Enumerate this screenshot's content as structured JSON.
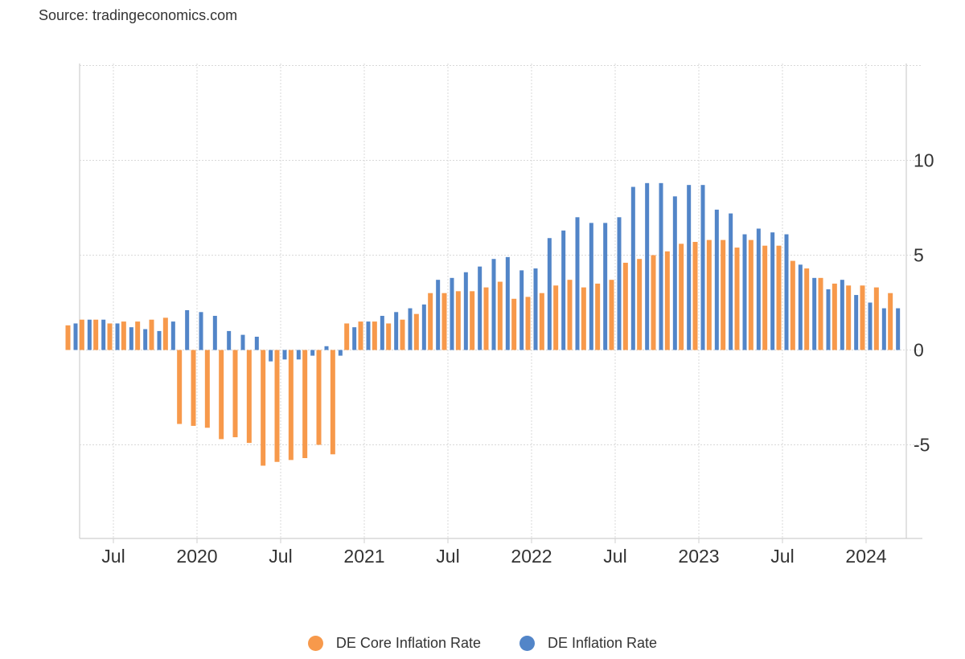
{
  "source": "Source: tradingeconomics.com",
  "chart_data": {
    "type": "bar",
    "x_ticks": [
      "Jul",
      "2020",
      "Jul",
      "2021",
      "Jul",
      "2022",
      "Jul",
      "2023",
      "Jul",
      "2024"
    ],
    "y_ticks": [
      10,
      5,
      0,
      -5
    ],
    "y_tick_labels": [
      "10",
      "5",
      "0",
      "-5"
    ],
    "ylim": [
      -10,
      15
    ],
    "grid": true,
    "legend_position": "bottom",
    "series": [
      {
        "name": "DE Core Inflation Rate",
        "color": "#f7994b",
        "values": [
          1.3,
          1.6,
          1.6,
          1.4,
          1.5,
          1.5,
          1.6,
          1.7,
          -3.9,
          -4.0,
          -4.1,
          -4.7,
          -4.6,
          -4.9,
          -6.1,
          -5.9,
          -5.8,
          -5.7,
          -5.0,
          -5.5,
          1.4,
          1.5,
          1.5,
          1.4,
          1.6,
          1.9,
          3.0,
          3.0,
          3.1,
          3.1,
          3.3,
          3.6,
          2.7,
          2.8,
          3.0,
          3.4,
          3.7,
          3.3,
          3.5,
          3.7,
          4.6,
          4.8,
          5.0,
          5.2,
          5.6,
          5.7,
          5.8,
          5.8,
          5.4,
          5.8,
          5.5,
          5.5,
          4.7,
          4.3,
          3.8,
          3.5,
          3.4,
          3.4,
          3.3,
          3.0
        ],
        "dates": [
          "2019-04",
          "2019-05",
          "2019-06",
          "2019-07",
          "2019-08",
          "2019-09",
          "2019-10",
          "2019-11",
          "2019-12",
          "2020-01",
          "2020-02",
          "2020-03",
          "2020-04",
          "2020-05",
          "2020-06",
          "2020-07",
          "2020-08",
          "2020-09",
          "2020-10",
          "2020-11",
          "2020-12",
          "2021-01",
          "2021-02",
          "2021-03",
          "2021-04",
          "2021-05",
          "2021-06",
          "2021-07",
          "2021-08",
          "2021-09",
          "2021-10",
          "2021-11",
          "2021-12",
          "2022-01",
          "2022-02",
          "2022-03",
          "2022-04",
          "2022-05",
          "2022-06",
          "2022-07",
          "2022-08",
          "2022-09",
          "2022-10",
          "2022-11",
          "2022-12",
          "2023-01",
          "2023-02",
          "2023-03",
          "2023-04",
          "2023-05",
          "2023-06",
          "2023-07",
          "2023-08",
          "2023-09",
          "2023-10",
          "2023-11",
          "2023-12",
          "2024-01",
          "2024-02",
          "2024-03"
        ]
      },
      {
        "name": "DE Inflation Rate",
        "color": "#5285c8",
        "values": [
          1.4,
          1.6,
          1.6,
          1.4,
          1.2,
          1.1,
          1.0,
          1.5,
          2.1,
          2.0,
          1.8,
          1.0,
          0.8,
          0.7,
          -0.6,
          -0.5,
          -0.5,
          -0.3,
          0.2,
          -0.3,
          1.2,
          1.5,
          1.8,
          2.0,
          2.2,
          2.4,
          3.7,
          3.8,
          4.1,
          4.4,
          4.8,
          4.9,
          4.2,
          4.3,
          5.9,
          6.3,
          7.0,
          6.7,
          6.7,
          7.0,
          8.6,
          8.8,
          8.8,
          8.1,
          8.7,
          8.7,
          7.4,
          7.2,
          6.1,
          6.4,
          6.2,
          6.1,
          4.5,
          3.8,
          3.2,
          3.7,
          2.9,
          2.5,
          2.2,
          2.2
        ],
        "dates": [
          "2019-04",
          "2019-05",
          "2019-06",
          "2019-07",
          "2019-08",
          "2019-09",
          "2019-10",
          "2019-11",
          "2019-12",
          "2020-01",
          "2020-02",
          "2020-03",
          "2020-04",
          "2020-05",
          "2020-06",
          "2020-07",
          "2020-08",
          "2020-09",
          "2020-10",
          "2020-11",
          "2020-12",
          "2021-01",
          "2021-02",
          "2021-03",
          "2021-04",
          "2021-05",
          "2021-06",
          "2021-07",
          "2021-08",
          "2021-09",
          "2021-10",
          "2021-11",
          "2021-12",
          "2022-01",
          "2022-02",
          "2022-03",
          "2022-04",
          "2022-05",
          "2022-06",
          "2022-07",
          "2022-08",
          "2022-09",
          "2022-10",
          "2022-11",
          "2022-12",
          "2023-01",
          "2023-02",
          "2023-03",
          "2023-04",
          "2023-05",
          "2023-06",
          "2023-07",
          "2023-08",
          "2023-09",
          "2023-10",
          "2023-11",
          "2023-12",
          "2024-01",
          "2024-02",
          "2024-03"
        ]
      }
    ]
  },
  "legend": {
    "items": [
      {
        "label": "DE Core Inflation Rate",
        "color": "#f7994b"
      },
      {
        "label": "DE Inflation Rate",
        "color": "#5285c8"
      }
    ]
  }
}
